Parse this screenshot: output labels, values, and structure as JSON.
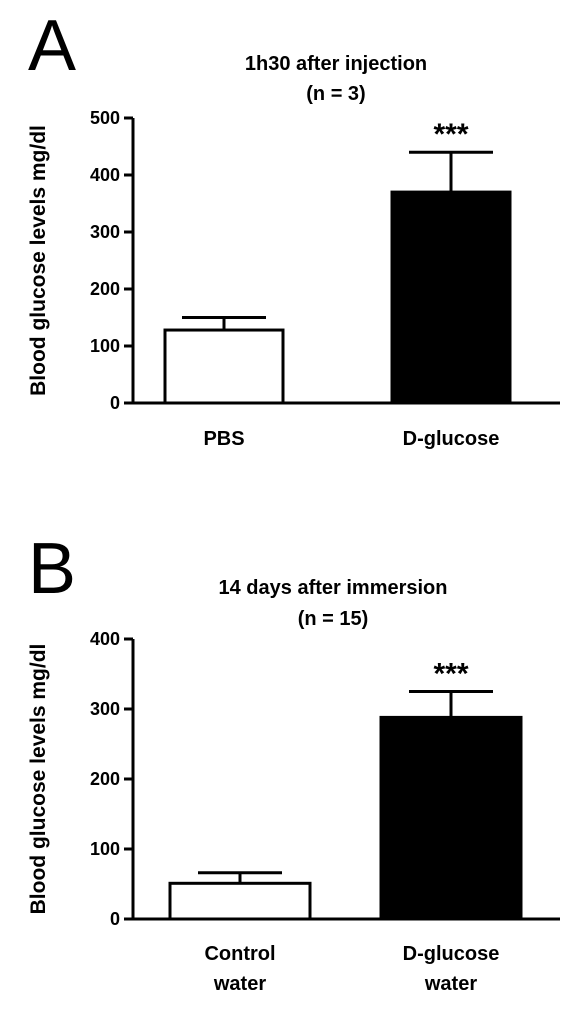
{
  "chart_data": [
    {
      "type": "bar",
      "panel_label": "A",
      "title": "1h30 after injection",
      "subtitle": "(n = 3)",
      "ylabel": "Blood glucose levels mg/dl",
      "ylim": [
        0,
        500
      ],
      "yticks": [
        "0",
        "100",
        "200",
        "300",
        "400",
        "500"
      ],
      "categories": [
        [
          "PBS"
        ],
        [
          "D-glucose"
        ]
      ],
      "values": [
        128,
        370
      ],
      "error": [
        22,
        70
      ],
      "bar_fill": [
        "#ffffff",
        "#000000"
      ],
      "significance": [
        "",
        "***"
      ]
    },
    {
      "type": "bar",
      "panel_label": "B",
      "title": "14 days after immersion",
      "subtitle": "(n = 15)",
      "ylabel": "Blood glucose levels mg/dl",
      "ylim": [
        0,
        400
      ],
      "yticks": [
        "0",
        "100",
        "200",
        "300",
        "400"
      ],
      "categories": [
        [
          "Control",
          "water"
        ],
        [
          "D-glucose",
          "water"
        ]
      ],
      "values": [
        51,
        288
      ],
      "error": [
        15,
        37
      ],
      "bar_fill": [
        "#ffffff",
        "#000000"
      ],
      "significance": [
        "",
        "***"
      ]
    }
  ]
}
